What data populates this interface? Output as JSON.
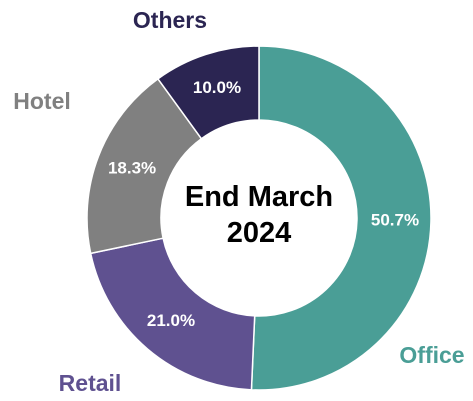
{
  "chart_data": {
    "type": "donut",
    "categories": [
      "Office",
      "Retail",
      "Hotel",
      "Others"
    ],
    "values": [
      50.7,
      21.0,
      18.3,
      10.0
    ],
    "value_labels": [
      "50.7%",
      "21.0%",
      "18.3%",
      "10.0%"
    ],
    "colors": [
      "#4a9e96",
      "#5f5190",
      "#808080",
      "#2b2552"
    ],
    "center_text": "End March 2024"
  }
}
